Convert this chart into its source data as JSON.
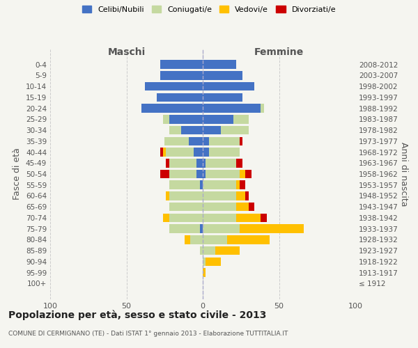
{
  "age_groups": [
    "100+",
    "95-99",
    "90-94",
    "85-89",
    "80-84",
    "75-79",
    "70-74",
    "65-69",
    "60-64",
    "55-59",
    "50-54",
    "45-49",
    "40-44",
    "35-39",
    "30-34",
    "25-29",
    "20-24",
    "15-19",
    "10-14",
    "5-9",
    "0-4"
  ],
  "birth_years": [
    "≤ 1912",
    "1913-1917",
    "1918-1922",
    "1923-1927",
    "1928-1932",
    "1933-1937",
    "1938-1942",
    "1943-1947",
    "1948-1952",
    "1953-1957",
    "1958-1962",
    "1963-1967",
    "1968-1972",
    "1973-1977",
    "1978-1982",
    "1983-1987",
    "1988-1992",
    "1993-1997",
    "1998-2002",
    "2003-2007",
    "2008-2012"
  ],
  "males": {
    "celibi": [
      0,
      0,
      0,
      0,
      0,
      2,
      0,
      0,
      0,
      2,
      4,
      4,
      6,
      9,
      14,
      22,
      40,
      30,
      38,
      28,
      28
    ],
    "coniugati": [
      0,
      0,
      0,
      2,
      8,
      20,
      22,
      22,
      22,
      20,
      18,
      18,
      18,
      16,
      8,
      4,
      0,
      0,
      0,
      0,
      0
    ],
    "vedovi": [
      0,
      0,
      0,
      0,
      4,
      0,
      4,
      0,
      2,
      0,
      0,
      0,
      2,
      0,
      0,
      0,
      0,
      0,
      0,
      0,
      0
    ],
    "divorziati": [
      0,
      0,
      0,
      0,
      0,
      0,
      0,
      0,
      0,
      0,
      6,
      2,
      2,
      0,
      0,
      0,
      0,
      0,
      0,
      0,
      0
    ]
  },
  "females": {
    "nubili": [
      0,
      0,
      0,
      0,
      0,
      0,
      0,
      0,
      0,
      0,
      2,
      2,
      4,
      4,
      12,
      20,
      38,
      26,
      34,
      26,
      22
    ],
    "coniugate": [
      0,
      0,
      2,
      8,
      16,
      24,
      22,
      22,
      22,
      22,
      22,
      20,
      20,
      20,
      18,
      10,
      2,
      0,
      0,
      0,
      0
    ],
    "vedove": [
      0,
      2,
      10,
      16,
      28,
      42,
      16,
      8,
      6,
      2,
      4,
      0,
      0,
      0,
      0,
      0,
      0,
      0,
      0,
      0,
      0
    ],
    "divorziate": [
      0,
      0,
      0,
      0,
      0,
      0,
      4,
      4,
      2,
      4,
      4,
      4,
      0,
      2,
      0,
      0,
      0,
      0,
      0,
      0,
      0
    ]
  },
  "colors": {
    "celibi": "#4472c4",
    "coniugati": "#c5d9a0",
    "vedovi": "#ffc000",
    "divorziati": "#cc0000"
  },
  "xlim": 100,
  "title": "Popolazione per età, sesso e stato civile - 2013",
  "subtitle": "COMUNE DI CERMIGNANO (TE) - Dati ISTAT 1° gennaio 2013 - Elaborazione TUTTITALIA.IT",
  "ylabel_left": "Fasce di età",
  "ylabel_right": "Anni di nascita",
  "xlabel_left": "Maschi",
  "xlabel_right": "Femmine",
  "bg_color": "#f5f5f0",
  "grid_color": "#cccccc",
  "bar_height": 0.8,
  "legend_labels": [
    "Celibi/Nubili",
    "Coniugati/e",
    "Vedovi/e",
    "Divorziati/e"
  ]
}
